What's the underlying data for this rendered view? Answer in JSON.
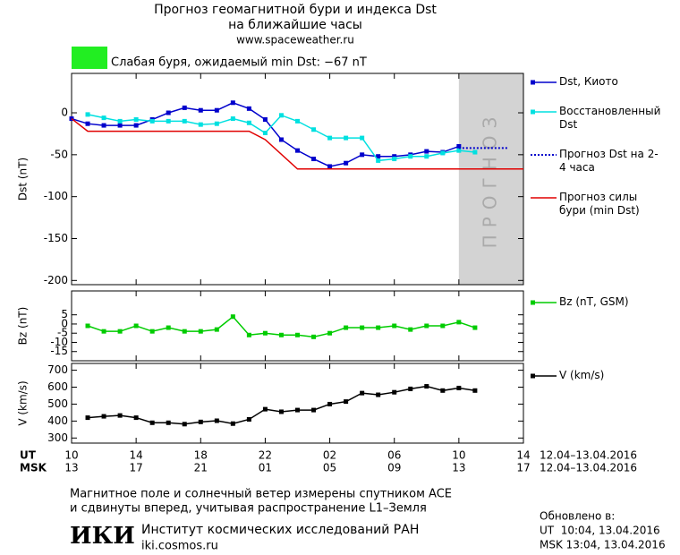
{
  "header": {
    "title_line1": "Прогноз геомагнитной бури и индекса Dst",
    "title_line2": "на ближайшие часы",
    "url": "www.spaceweather.ru",
    "status": "Слабая буря, ожидаемый min Dst: −67 nT",
    "status_color": "#22ee22"
  },
  "chart_data": [
    {
      "type": "line",
      "ylabel": "Dst (nT)",
      "xlim": [
        0,
        28
      ],
      "ylim": [
        -205,
        47
      ],
      "yticks": [
        0,
        -50,
        -100,
        -150,
        -200
      ],
      "forecast_region": {
        "xlim": [
          24,
          28
        ],
        "label": "ПРОГНОЗ",
        "color": "#d3d3d3"
      },
      "series": [
        {
          "name": "Dst, Киото",
          "color": "#0000cc",
          "marker": true,
          "dash": "solid",
          "x": [
            0,
            1,
            2,
            3,
            4,
            5,
            6,
            7,
            8,
            9,
            10,
            11,
            12,
            13,
            14,
            15,
            16,
            17,
            18,
            19,
            20,
            21,
            22,
            23,
            24
          ],
          "values": [
            -7,
            -13,
            -15,
            -15,
            -15,
            -8,
            0,
            6,
            3,
            3,
            12,
            5,
            -8,
            -32,
            -45,
            -55,
            -64,
            -60,
            -50,
            -52,
            -52,
            -50,
            -46,
            -47,
            -40
          ]
        },
        {
          "name": "Восстановленный Dst",
          "color": "#00e0e0",
          "marker": true,
          "dash": "solid",
          "x": [
            1,
            2,
            3,
            4,
            5,
            6,
            7,
            8,
            9,
            10,
            11,
            12,
            13,
            14,
            15,
            16,
            17,
            18,
            19,
            20,
            21,
            22,
            23,
            24,
            25
          ],
          "values": [
            -2,
            -6,
            -10,
            -8,
            -10,
            -10,
            -10,
            -14,
            -13,
            -7,
            -12,
            -24,
            -3,
            -10,
            -20,
            -30,
            -30,
            -30,
            -57,
            -55,
            -52,
            -52,
            -48,
            -45,
            -47
          ]
        },
        {
          "name": "Прогноз Dst на 2-4 часа",
          "color": "#0000cc",
          "marker": false,
          "dash": "dotted",
          "x": [
            24,
            25,
            26,
            27
          ],
          "values": [
            -42,
            -42,
            -42,
            -42
          ]
        },
        {
          "name": "Прогноз силы бури (min Dst)",
          "color": "#e00000",
          "marker": false,
          "dash": "solid",
          "x": [
            0,
            1,
            11,
            12,
            14,
            28
          ],
          "values": [
            -7,
            -22,
            -22,
            -32,
            -67,
            -67
          ]
        }
      ]
    },
    {
      "type": "line",
      "ylabel": "Bz (nT)",
      "xlim": [
        0,
        28
      ],
      "ylim": [
        -20,
        18
      ],
      "yticks": [
        5,
        0,
        -5,
        -10,
        -15
      ],
      "series": [
        {
          "name": "Bz (nT, GSM)",
          "color": "#00cc00",
          "marker": true,
          "dash": "solid",
          "x": [
            1,
            2,
            3,
            4,
            5,
            6,
            7,
            8,
            9,
            10,
            11,
            12,
            13,
            14,
            15,
            16,
            17,
            18,
            19,
            20,
            21,
            22,
            23,
            24,
            25
          ],
          "values": [
            -1,
            -4,
            -4,
            -1,
            -4,
            -2,
            -4,
            -4,
            -3,
            4,
            -6,
            -5,
            -6,
            -6,
            -7,
            -5,
            -2,
            -2,
            -2,
            -1,
            -3,
            -1,
            -1,
            1,
            -2
          ]
        }
      ]
    },
    {
      "type": "line",
      "ylabel": "V (km/s)",
      "xlim": [
        0,
        28
      ],
      "ylim": [
        270,
        740
      ],
      "yticks": [
        300,
        400,
        500,
        600,
        700
      ],
      "xticks": [
        {
          "value": 0,
          "label": "10"
        },
        {
          "value": 4,
          "label": "14"
        },
        {
          "value": 8,
          "label": "18"
        },
        {
          "value": 12,
          "label": "22"
        },
        {
          "value": 16,
          "label": "02"
        },
        {
          "value": 20,
          "label": "06"
        },
        {
          "value": 24,
          "label": "10"
        },
        {
          "value": 28,
          "label": "14"
        }
      ],
      "series": [
        {
          "name": "V (km/s)",
          "color": "#000000",
          "marker": true,
          "dash": "solid",
          "x": [
            1,
            2,
            3,
            4,
            5,
            6,
            7,
            8,
            9,
            10,
            11,
            12,
            13,
            14,
            15,
            16,
            17,
            18,
            19,
            20,
            21,
            22,
            23,
            24,
            25
          ],
          "values": [
            420,
            428,
            433,
            420,
            390,
            390,
            382,
            395,
            402,
            385,
            410,
            470,
            455,
            465,
            465,
            500,
            515,
            565,
            555,
            570,
            590,
            605,
            580,
            595,
            580
          ]
        }
      ]
    }
  ],
  "time_axis": {
    "ut": "UT",
    "msk": "MSK",
    "ut_date": "12.04–13.04.2016",
    "msk_date": "12.04–13.04.2016",
    "msk_ticks": [
      {
        "value": 0,
        "label": "13"
      },
      {
        "value": 4,
        "label": "17"
      },
      {
        "value": 8,
        "label": "21"
      },
      {
        "value": 12,
        "label": "01"
      },
      {
        "value": 16,
        "label": "05"
      },
      {
        "value": 20,
        "label": "09"
      },
      {
        "value": 24,
        "label": "13"
      },
      {
        "value": 28,
        "label": "17"
      }
    ]
  },
  "footer": {
    "note_line1": "Магнитное поле и солнечный ветер измерены спутником ACE",
    "note_line2": "и сдвинуты вперед, учитывая распространение L1–Земля",
    "logo": "ИКИ",
    "institute": "Институт космических исследований РАН",
    "site": "iki.cosmos.ru",
    "updated": "Обновлено в:",
    "updated_ut": "UT  10:04, 13.04.2016",
    "updated_msk": "MSK 13:04, 13.04.2016"
  }
}
